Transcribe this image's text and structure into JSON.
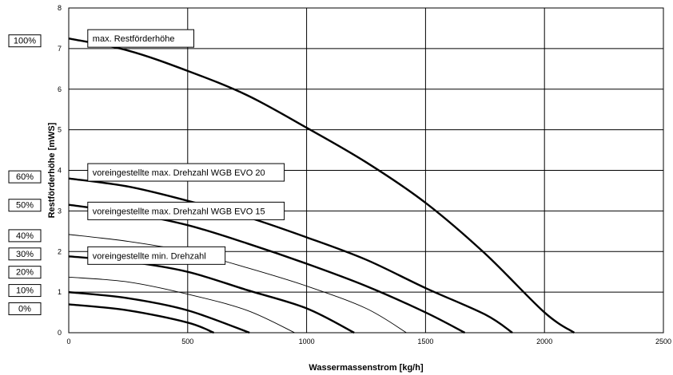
{
  "chart_data": {
    "type": "line",
    "title": "",
    "xlabel": "Wassermassenstrom [kg/h]",
    "ylabel": "Restförderhöhe [mWS]",
    "xlim": [
      0,
      2500
    ],
    "ylim": [
      0,
      8
    ],
    "xticks": [
      "0",
      "500",
      "1000",
      "1500",
      "2000",
      "2500"
    ],
    "yticks": [
      "0",
      "1",
      "2",
      "3",
      "4",
      "5",
      "6",
      "7",
      "8"
    ],
    "grid": true,
    "series": [
      {
        "name": "100%",
        "bold": true,
        "x": [
          0,
          250,
          500,
          750,
          1000,
          1250,
          1500,
          1750,
          2000,
          2125
        ],
        "y": [
          7.25,
          6.95,
          6.45,
          5.85,
          5.05,
          4.2,
          3.2,
          1.95,
          0.5,
          0
        ]
      },
      {
        "name": "60%",
        "bold": true,
        "x": [
          0,
          250,
          500,
          750,
          1000,
          1250,
          1500,
          1750,
          1865
        ],
        "y": [
          3.8,
          3.6,
          3.25,
          2.85,
          2.35,
          1.8,
          1.1,
          0.45,
          0
        ]
      },
      {
        "name": "50%",
        "bold": true,
        "x": [
          0,
          250,
          500,
          750,
          1000,
          1250,
          1500,
          1665
        ],
        "y": [
          3.15,
          2.95,
          2.65,
          2.2,
          1.7,
          1.15,
          0.5,
          0
        ]
      },
      {
        "name": "40%",
        "bold": false,
        "x": [
          0,
          250,
          500,
          750,
          1000,
          1250,
          1420
        ],
        "y": [
          2.42,
          2.25,
          2.0,
          1.6,
          1.15,
          0.6,
          0
        ]
      },
      {
        "name": "30%",
        "bold": true,
        "x": [
          0,
          250,
          500,
          750,
          1000,
          1200
        ],
        "y": [
          1.88,
          1.75,
          1.5,
          1.05,
          0.6,
          0
        ]
      },
      {
        "name": "20%",
        "bold": false,
        "x": [
          0,
          250,
          500,
          750,
          950
        ],
        "y": [
          1.37,
          1.25,
          0.95,
          0.55,
          0
        ]
      },
      {
        "name": "10%",
        "bold": true,
        "x": [
          0,
          250,
          500,
          760
        ],
        "y": [
          1.0,
          0.85,
          0.55,
          0
        ]
      },
      {
        "name": "0%",
        "bold": true,
        "x": [
          0,
          250,
          500,
          610
        ],
        "y": [
          0.7,
          0.55,
          0.25,
          0
        ]
      }
    ],
    "speed_labels": [
      {
        "text": "100%",
        "y": 7.2
      },
      {
        "text": "60%",
        "y": 3.85
      },
      {
        "text": "50%",
        "y": 3.15
      },
      {
        "text": "40%",
        "y": 2.4
      },
      {
        "text": "30%",
        "y": 1.95
      },
      {
        "text": "20%",
        "y": 1.5
      },
      {
        "text": "10%",
        "y": 1.05
      },
      {
        "text": "0%",
        "y": 0.6
      }
    ],
    "annotations": [
      {
        "text": "max. Restförderhöhe",
        "x": 80,
        "y": 7.25
      },
      {
        "text": "voreingestellte max. Drehzahl WGB EVO 20",
        "x": 80,
        "y": 3.95
      },
      {
        "text": "voreingestellte max. Drehzahl WGB EVO 15",
        "x": 80,
        "y": 3.0
      },
      {
        "text": "voreingestellte min. Drehzahl",
        "x": 80,
        "y": 1.9
      }
    ]
  }
}
